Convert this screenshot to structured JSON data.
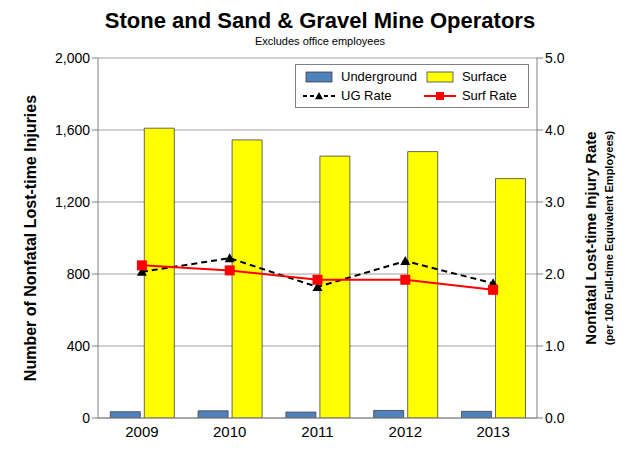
{
  "chart_data": {
    "type": "bar",
    "title": "Stone and Sand & Gravel Mine Operators",
    "subtitle": "Excludes office employees",
    "ylabel": "Number of Nonfatal Lost-time Injuries",
    "y2label": "Nonfatal Lost-time Injury Rate",
    "y2sublabel": "(per 100 Full-time Equivalent Employees)",
    "categories": [
      "2009",
      "2010",
      "2011",
      "2012",
      "2013"
    ],
    "series": [
      {
        "name": "Underground",
        "type": "bar",
        "color": "#4f81bd",
        "values": [
          35,
          40,
          33,
          42,
          37
        ]
      },
      {
        "name": "Surface",
        "type": "bar",
        "color": "#ffff00",
        "values": [
          1610,
          1545,
          1455,
          1480,
          1330
        ]
      },
      {
        "name": "UG Rate",
        "type": "line",
        "axis": "y2",
        "color": "#000000",
        "marker": "triangle",
        "line_style": "dashed",
        "values": [
          2.03,
          2.22,
          1.82,
          2.18,
          1.87
        ]
      },
      {
        "name": "Surf Rate",
        "type": "line",
        "axis": "y2",
        "color": "#ff0000",
        "marker": "square",
        "line_style": "solid",
        "values": [
          2.12,
          2.05,
          1.92,
          1.92,
          1.78
        ]
      }
    ],
    "ylim": [
      0,
      2000
    ],
    "yticks": [
      0,
      400,
      800,
      {
        "value": 1200,
        "label": "1,200"
      },
      {
        "value": 1600,
        "label": "1,600"
      },
      {
        "value": 2000,
        "label": "2,000"
      }
    ],
    "y2lim": [
      0,
      5
    ],
    "y2ticks": [
      {
        "value": 0,
        "label": "0.0"
      },
      {
        "value": 1,
        "label": "1.0"
      },
      {
        "value": 2,
        "label": "2.0"
      },
      {
        "value": 3,
        "label": "3.0"
      },
      {
        "value": 4,
        "label": "4.0"
      },
      {
        "value": 5,
        "label": "5.0"
      }
    ],
    "grid": true,
    "legend": "upper right"
  }
}
